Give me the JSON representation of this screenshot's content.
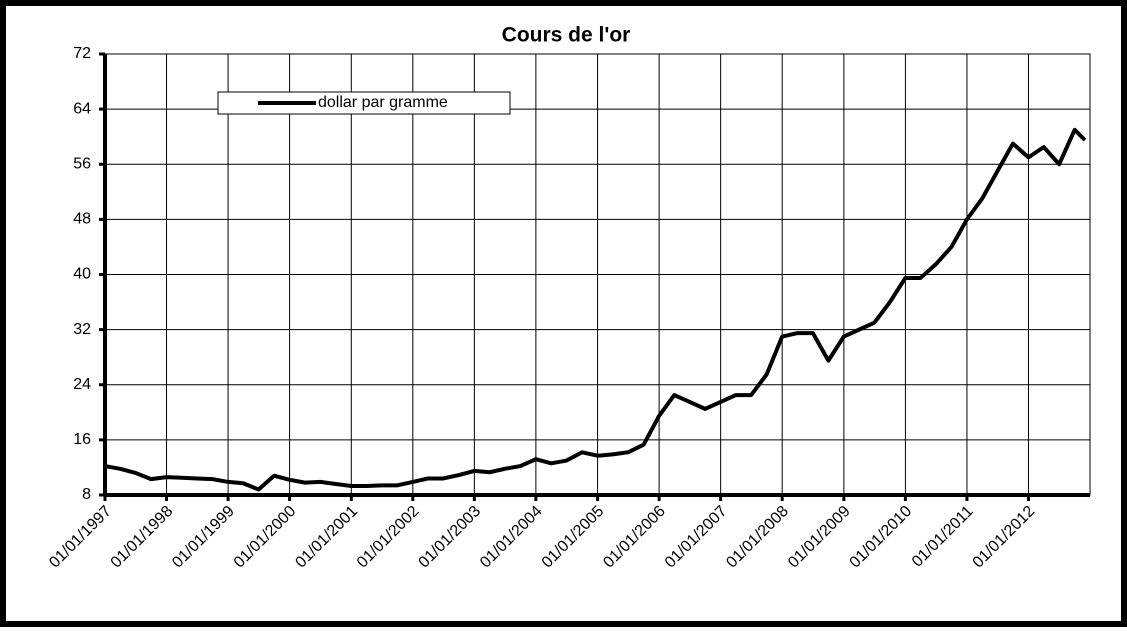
{
  "chart_data": {
    "type": "line",
    "title": "Cours de l'or",
    "x": [
      "01/01/1997",
      "01/04/1997",
      "01/07/1997",
      "01/10/1997",
      "01/01/1998",
      "01/04/1998",
      "01/07/1998",
      "01/10/1998",
      "01/01/1999",
      "01/04/1999",
      "01/07/1999",
      "01/10/1999",
      "01/01/2000",
      "01/04/2000",
      "01/07/2000",
      "01/10/2000",
      "01/01/2001",
      "01/04/2001",
      "01/07/2001",
      "01/10/2001",
      "01/01/2002",
      "01/04/2002",
      "01/07/2002",
      "01/10/2002",
      "01/01/2003",
      "01/04/2003",
      "01/07/2003",
      "01/10/2003",
      "01/01/2004",
      "01/04/2004",
      "01/07/2004",
      "01/10/2004",
      "01/01/2005",
      "01/04/2005",
      "01/07/2005",
      "01/10/2005",
      "01/01/2006",
      "01/04/2006",
      "01/07/2006",
      "01/10/2006",
      "01/01/2007",
      "01/04/2007",
      "01/07/2007",
      "01/10/2007",
      "01/01/2008",
      "01/04/2008",
      "01/07/2008",
      "01/10/2008",
      "01/01/2009",
      "01/04/2009",
      "01/07/2009",
      "01/10/2009",
      "01/01/2010",
      "01/04/2010",
      "01/07/2010",
      "01/10/2010",
      "01/01/2011",
      "01/04/2011",
      "01/07/2011",
      "01/10/2011",
      "01/01/2012",
      "01/04/2012",
      "01/07/2012",
      "01/10/2012",
      "01/12/2012"
    ],
    "series": [
      {
        "name": "dollar par gramme",
        "color": "#000000",
        "values": [
          12.2,
          11.8,
          11.2,
          10.3,
          10.6,
          10.5,
          10.4,
          10.3,
          9.9,
          9.7,
          8.8,
          10.8,
          10.2,
          9.8,
          9.9,
          9.6,
          9.3,
          9.3,
          9.4,
          9.4,
          9.9,
          10.4,
          10.4,
          10.9,
          11.5,
          11.3,
          11.8,
          12.2,
          13.2,
          12.6,
          13.0,
          14.2,
          13.7,
          13.9,
          14.2,
          15.3,
          19.5,
          22.5,
          21.5,
          20.5,
          21.5,
          22.5,
          22.5,
          25.5,
          31,
          31.5,
          31.5,
          27.5,
          31,
          32,
          33,
          36,
          39.5,
          39.5,
          41.5,
          44,
          48,
          51,
          55,
          59,
          57,
          58.5,
          56,
          61,
          59.5
        ]
      }
    ],
    "xlim": [
      "01/01/1997",
      "31/12/2012"
    ],
    "xticks": [
      "01/01/1997",
      "01/01/1998",
      "01/01/1999",
      "01/01/2000",
      "01/01/2001",
      "01/01/2002",
      "01/01/2003",
      "01/01/2004",
      "01/01/2005",
      "01/01/2006",
      "01/01/2007",
      "01/01/2008",
      "01/01/2009",
      "01/01/2010",
      "01/01/2011",
      "01/01/2012"
    ],
    "ylim": [
      8,
      72
    ],
    "yticks": [
      8,
      16,
      24,
      32,
      40,
      48,
      56,
      64,
      72
    ],
    "grid": true
  }
}
